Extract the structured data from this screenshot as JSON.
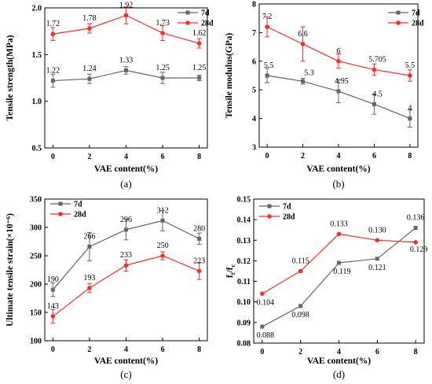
{
  "colors": {
    "s7d": "#666666",
    "s28d": "#ff2a2a"
  },
  "chart_data": [
    {
      "panel": "(a)",
      "type": "line",
      "xlabel": "VAE content(%)",
      "ylabel": "Tensile strength(MPa)",
      "x": [
        0,
        2,
        4,
        6,
        8
      ],
      "xticks": [
        "0",
        "2",
        "4",
        "6",
        "8"
      ],
      "yticks": [
        "0.5",
        "1.0",
        "1.5",
        "2.0"
      ],
      "yticks_v": [
        0.5,
        1.0,
        1.5,
        2.0
      ],
      "ylim": [
        0.5,
        2.0
      ],
      "legend": "top-right",
      "series": [
        {
          "name": "7d",
          "color": "#666666",
          "values": [
            1.22,
            1.24,
            1.33,
            1.25,
            1.25
          ],
          "errors": [
            0.07,
            0.05,
            0.04,
            0.06,
            0.03
          ],
          "labels": [
            "1.22",
            "1.24",
            "1.33",
            "1.25",
            "1.25"
          ]
        },
        {
          "name": "28d",
          "color": "#ff2a2a",
          "values": [
            1.72,
            1.78,
            1.92,
            1.73,
            1.62
          ],
          "errors": [
            0.07,
            0.05,
            0.09,
            0.08,
            0.05
          ],
          "labels": [
            "1.72",
            "1.78",
            "1.92",
            "1.73",
            "1.62"
          ]
        }
      ]
    },
    {
      "panel": "(b)",
      "type": "line",
      "xlabel": "VAE content(%)",
      "ylabel": "Tensile modulus(GPa)",
      "x": [
        0,
        2,
        4,
        6,
        8
      ],
      "xticks": [
        "0",
        "2",
        "4",
        "6",
        "8"
      ],
      "yticks": [
        "3",
        "4",
        "5",
        "6",
        "7",
        "8"
      ],
      "yticks_v": [
        3,
        4,
        5,
        6,
        7,
        8
      ],
      "ylim": [
        3,
        8
      ],
      "legend": "top-right",
      "series": [
        {
          "name": "7d",
          "color": "#666666",
          "values": [
            5.5,
            5.3,
            4.95,
            4.5,
            4.0
          ],
          "errors": [
            0.25,
            0.1,
            0.4,
            0.35,
            0.3
          ],
          "labels": [
            "5.5",
            "5.3",
            "4.95",
            "4.5",
            "4"
          ]
        },
        {
          "name": "28d",
          "color": "#ff2a2a",
          "values": [
            7.2,
            6.6,
            6.0,
            5.705,
            5.5
          ],
          "errors": [
            0.35,
            0.6,
            0.25,
            0.2,
            0.2
          ],
          "labels": [
            "7.2",
            "6.6",
            "6",
            "5.705",
            "5.5"
          ]
        }
      ]
    },
    {
      "panel": "(c)",
      "type": "line",
      "xlabel": "VAE content(%)",
      "ylabel": "Ultimate tensile strain(×10⁻⁶)",
      "x": [
        0,
        2,
        4,
        6,
        8
      ],
      "xticks": [
        "0",
        "2",
        "4",
        "6",
        "8"
      ],
      "yticks": [
        "100",
        "150",
        "200",
        "250",
        "300",
        "350"
      ],
      "yticks_v": [
        100,
        150,
        200,
        250,
        300,
        350
      ],
      "ylim": [
        100,
        350
      ],
      "legend": "top-left",
      "series": [
        {
          "name": "7d",
          "color": "#666666",
          "values": [
            190,
            266,
            296,
            312,
            280
          ],
          "errors": [
            12,
            25,
            18,
            18,
            10
          ],
          "labels": [
            "190",
            "266",
            "296",
            "312",
            "280"
          ]
        },
        {
          "name": "28d",
          "color": "#ff2a2a",
          "values": [
            143,
            193,
            233,
            250,
            223
          ],
          "errors": [
            12,
            8,
            10,
            7,
            15
          ],
          "labels": [
            "143",
            "193",
            "233",
            "250",
            "223"
          ]
        }
      ]
    },
    {
      "panel": "(d)",
      "type": "line",
      "xlabel": "VAE content(%)",
      "ylabel": "ft/fc",
      "x": [
        0,
        2,
        4,
        6,
        8
      ],
      "xticks": [
        "0",
        "2",
        "4",
        "6",
        "8"
      ],
      "yticks": [
        "0.08",
        "0.09",
        "0.10",
        "0.11",
        "0.12",
        "0.13",
        "0.14",
        "0.15"
      ],
      "yticks_v": [
        0.08,
        0.09,
        0.1,
        0.11,
        0.12,
        0.13,
        0.14,
        0.15
      ],
      "ylim": [
        0.08,
        0.15
      ],
      "legend": "top-left",
      "series": [
        {
          "name": "7d",
          "color": "#666666",
          "values": [
            0.088,
            0.098,
            0.119,
            0.121,
            0.136
          ],
          "errors": [
            0,
            0,
            0,
            0,
            0
          ],
          "labels": [
            "0.088",
            "0.098",
            "0.119",
            "0.121",
            "0.136"
          ]
        },
        {
          "name": "28d",
          "color": "#ff2a2a",
          "values": [
            0.104,
            0.115,
            0.133,
            0.13,
            0.129
          ],
          "errors": [
            0,
            0,
            0,
            0,
            0
          ],
          "labels": [
            "0.104",
            "0.115",
            "0.133",
            "0.130",
            "0.129"
          ]
        }
      ]
    }
  ]
}
